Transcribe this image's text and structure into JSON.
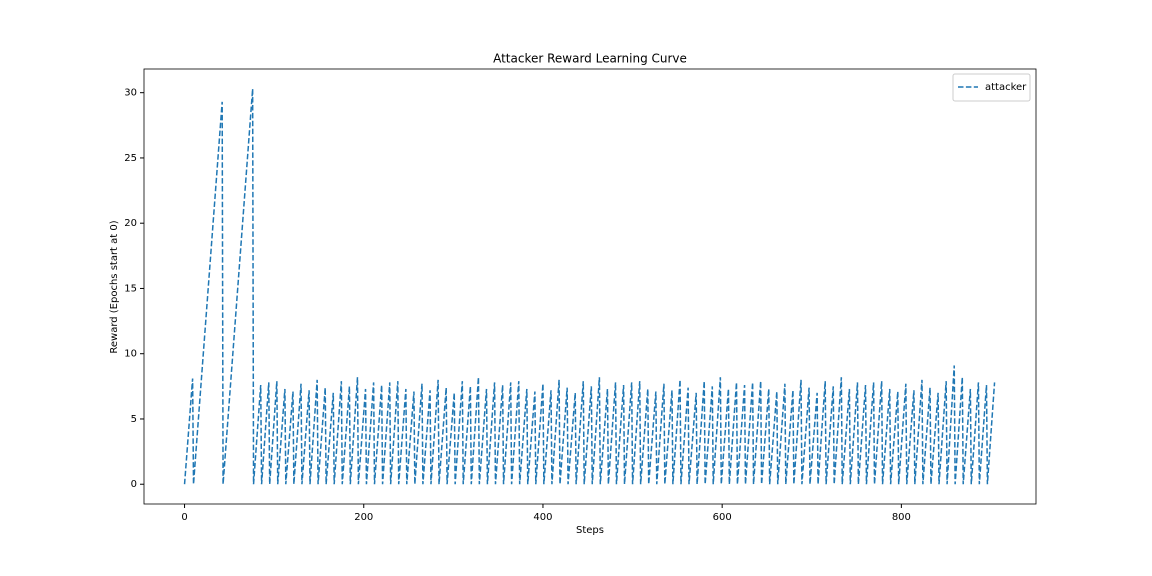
{
  "chart_data": {
    "type": "line",
    "title": "Attacker Reward Learning Curve",
    "xlabel": "Steps",
    "ylabel": "Reward (Epochs start at 0)",
    "xlim": [
      -45.25,
      950.25
    ],
    "xticks": [
      0,
      200,
      400,
      600,
      800
    ],
    "ylim": [
      -1.515,
      31.815
    ],
    "yticks": [
      0,
      5,
      10,
      15,
      20,
      25,
      30
    ],
    "legend": "upper right",
    "dashed": true,
    "x": [
      0,
      9,
      10,
      42,
      43,
      76,
      77,
      85,
      86,
      94,
      95,
      103,
      104,
      112,
      113,
      121,
      122,
      130,
      131,
      139,
      140,
      148,
      149,
      157,
      158,
      166,
      167,
      175,
      176,
      184,
      185,
      193,
      194,
      202,
      203,
      211,
      212,
      220,
      221,
      229,
      230,
      238,
      239,
      247,
      248,
      256,
      257,
      265,
      266,
      274,
      275,
      283,
      284,
      292,
      293,
      301,
      302,
      310,
      311,
      319,
      320,
      328,
      329,
      337,
      338,
      346,
      347,
      355,
      356,
      364,
      365,
      373,
      374,
      382,
      383,
      391,
      392,
      400,
      401,
      409,
      410,
      418,
      419,
      427,
      428,
      436,
      437,
      445,
      446,
      454,
      455,
      463,
      464,
      472,
      473,
      481,
      482,
      490,
      491,
      499,
      500,
      508,
      509,
      517,
      518,
      526,
      527,
      535,
      536,
      544,
      545,
      553,
      554,
      562,
      563,
      571,
      572,
      580,
      581,
      589,
      590,
      598,
      599,
      607,
      608,
      616,
      617,
      625,
      626,
      634,
      635,
      643,
      644,
      652,
      653,
      661,
      662,
      670,
      671,
      679,
      680,
      688,
      689,
      697,
      698,
      706,
      707,
      715,
      716,
      724,
      725,
      733,
      734,
      742,
      743,
      751,
      752,
      760,
      761,
      769,
      770,
      778,
      779,
      787,
      788,
      796,
      797,
      805,
      806,
      814,
      815,
      823,
      824,
      832,
      833,
      841,
      842,
      850,
      851,
      859,
      860,
      868,
      869,
      877,
      878,
      886,
      887,
      895,
      896,
      904
    ],
    "series": [
      {
        "name": "attacker",
        "color": "#1f77b4",
        "values": [
          0,
          8.1,
          0,
          29.3,
          0,
          30.3,
          0,
          7.6,
          0,
          7.8,
          0,
          7.9,
          0,
          7.3,
          0,
          7.1,
          0,
          7.7,
          0,
          7.2,
          0,
          8.0,
          0,
          7.4,
          0,
          7.0,
          0,
          7.9,
          0,
          7.5,
          0,
          8.2,
          0,
          7.3,
          0,
          7.8,
          0,
          7.6,
          0,
          7.8,
          0,
          7.9,
          0,
          7.3,
          0,
          7.1,
          0,
          7.7,
          0,
          7.2,
          0,
          8.0,
          0,
          7.4,
          0,
          7.0,
          0,
          7.9,
          0,
          7.5,
          0,
          8.2,
          0,
          7.3,
          0,
          7.8,
          0,
          7.6,
          0,
          7.8,
          0,
          7.9,
          0,
          7.3,
          0,
          7.1,
          0,
          7.7,
          0,
          7.2,
          0,
          8.0,
          0,
          7.4,
          0,
          7.0,
          0,
          7.9,
          0,
          7.5,
          0,
          8.2,
          0,
          7.3,
          0,
          7.8,
          0,
          7.6,
          0,
          7.8,
          0,
          7.9,
          0,
          7.3,
          0,
          7.1,
          0,
          7.7,
          0,
          7.2,
          0,
          8.0,
          0,
          7.4,
          0,
          7.0,
          0,
          7.9,
          0,
          7.5,
          0,
          8.2,
          0,
          7.3,
          0,
          7.8,
          0,
          7.6,
          0,
          7.8,
          0,
          7.9,
          0,
          7.3,
          0,
          7.1,
          0,
          7.7,
          0,
          7.2,
          0,
          8.0,
          0,
          7.4,
          0,
          7.0,
          0,
          7.9,
          0,
          7.5,
          0,
          8.2,
          0,
          7.3,
          0,
          7.8,
          0,
          7.6,
          0,
          7.8,
          0,
          7.9,
          0,
          7.3,
          0,
          7.1,
          0,
          7.7,
          0,
          7.2,
          0,
          8.0,
          0,
          7.4,
          0,
          7.0,
          0,
          7.9,
          0,
          9.1,
          0,
          8.2,
          0,
          7.3,
          0,
          7.8,
          0,
          7.6,
          0,
          7.8
        ]
      }
    ]
  }
}
